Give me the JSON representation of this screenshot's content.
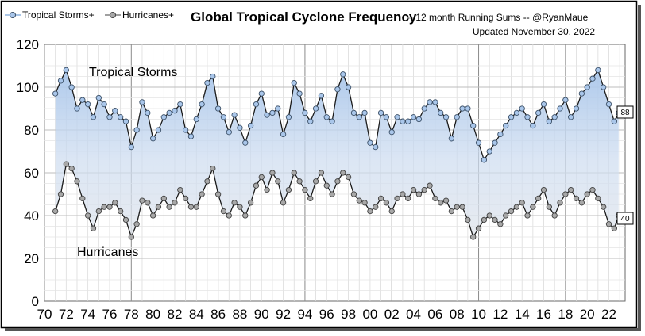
{
  "chart_data": {
    "type": "line",
    "title": "Global Tropical Cyclone Frequency",
    "title_suffix": "-- 12 month Running Sums -- @RyanMaue",
    "updated": "Updated November 30, 2022",
    "x_tick_labels": [
      "70",
      "72",
      "74",
      "76",
      "78",
      "80",
      "82",
      "84",
      "86",
      "88",
      "90",
      "92",
      "94",
      "96",
      "98",
      "00",
      "02",
      "04",
      "06",
      "08",
      "10",
      "12",
      "14",
      "16",
      "18",
      "20",
      "22"
    ],
    "y_ticks": [
      0,
      20,
      40,
      60,
      80,
      100,
      120
    ],
    "xlim": [
      1970,
      2023.5
    ],
    "ylim": [
      0,
      120
    ],
    "grid": true,
    "legend_position": "top-left",
    "series": [
      {
        "name": "Tropical Storms+",
        "annotation": "Tropical Storms",
        "end_label": "88",
        "color": "#8fb4de",
        "x": [
          1971.0,
          1971.5,
          1972.0,
          1972.5,
          1973.0,
          1973.5,
          1974.0,
          1974.5,
          1975.0,
          1975.5,
          1976.0,
          1976.5,
          1977.0,
          1977.5,
          1978.0,
          1978.5,
          1979.0,
          1979.5,
          1980.0,
          1980.5,
          1981.0,
          1981.5,
          1982.0,
          1982.5,
          1983.0,
          1983.5,
          1984.0,
          1984.5,
          1985.0,
          1985.5,
          1986.0,
          1986.5,
          1987.0,
          1987.5,
          1988.0,
          1988.5,
          1989.0,
          1989.5,
          1990.0,
          1990.5,
          1991.0,
          1991.5,
          1992.0,
          1992.5,
          1993.0,
          1993.5,
          1994.0,
          1994.5,
          1995.0,
          1995.5,
          1996.0,
          1996.5,
          1997.0,
          1997.5,
          1998.0,
          1998.5,
          1999.0,
          1999.5,
          2000.0,
          2000.5,
          2001.0,
          2001.5,
          2002.0,
          2002.5,
          2003.0,
          2003.5,
          2004.0,
          2004.5,
          2005.0,
          2005.5,
          2006.0,
          2006.5,
          2007.0,
          2007.5,
          2008.0,
          2008.5,
          2009.0,
          2009.5,
          2010.0,
          2010.5,
          2011.0,
          2011.5,
          2012.0,
          2012.5,
          2013.0,
          2013.5,
          2014.0,
          2014.5,
          2015.0,
          2015.5,
          2016.0,
          2016.5,
          2017.0,
          2017.5,
          2018.0,
          2018.5,
          2019.0,
          2019.5,
          2020.0,
          2020.5,
          2021.0,
          2021.5,
          2022.0,
          2022.5,
          2022.9
        ],
        "values": [
          97,
          103,
          108,
          100,
          90,
          94,
          92,
          86,
          95,
          92,
          86,
          89,
          86,
          84,
          72,
          80,
          93,
          88,
          76,
          80,
          86,
          88,
          89,
          92,
          80,
          77,
          85,
          92,
          102,
          105,
          90,
          86,
          79,
          87,
          81,
          74,
          82,
          92,
          97,
          87,
          88,
          90,
          78,
          86,
          102,
          97,
          88,
          84,
          90,
          96,
          86,
          84,
          99,
          106,
          100,
          88,
          86,
          88,
          74,
          72,
          88,
          86,
          79,
          86,
          84,
          84,
          86,
          85,
          90,
          93,
          93,
          88,
          86,
          76,
          86,
          90,
          90,
          82,
          74,
          66,
          70,
          74,
          78,
          82,
          86,
          88,
          90,
          86,
          82,
          88,
          92,
          84,
          86,
          90,
          94,
          86,
          90,
          97,
          100,
          104,
          108,
          100,
          92,
          84,
          88
        ]
      },
      {
        "name": "Hurricanes+",
        "annotation": "Hurricanes",
        "end_label": "40",
        "color": "#9a9a9a",
        "x": [
          1971.0,
          1971.5,
          1972.0,
          1972.5,
          1973.0,
          1973.5,
          1974.0,
          1974.5,
          1975.0,
          1975.5,
          1976.0,
          1976.5,
          1977.0,
          1977.5,
          1978.0,
          1978.5,
          1979.0,
          1979.5,
          1980.0,
          1980.5,
          1981.0,
          1981.5,
          1982.0,
          1982.5,
          1983.0,
          1983.5,
          1984.0,
          1984.5,
          1985.0,
          1985.5,
          1986.0,
          1986.5,
          1987.0,
          1987.5,
          1988.0,
          1988.5,
          1989.0,
          1989.5,
          1990.0,
          1990.5,
          1991.0,
          1991.5,
          1992.0,
          1992.5,
          1993.0,
          1993.5,
          1994.0,
          1994.5,
          1995.0,
          1995.5,
          1996.0,
          1996.5,
          1997.0,
          1997.5,
          1998.0,
          1998.5,
          1999.0,
          1999.5,
          2000.0,
          2000.5,
          2001.0,
          2001.5,
          2002.0,
          2002.5,
          2003.0,
          2003.5,
          2004.0,
          2004.5,
          2005.0,
          2005.5,
          2006.0,
          2006.5,
          2007.0,
          2007.5,
          2008.0,
          2008.5,
          2009.0,
          2009.5,
          2010.0,
          2010.5,
          2011.0,
          2011.5,
          2012.0,
          2012.5,
          2013.0,
          2013.5,
          2014.0,
          2014.5,
          2015.0,
          2015.5,
          2016.0,
          2016.5,
          2017.0,
          2017.5,
          2018.0,
          2018.5,
          2019.0,
          2019.5,
          2020.0,
          2020.5,
          2021.0,
          2021.5,
          2022.0,
          2022.5,
          2022.9
        ],
        "values": [
          42,
          50,
          64,
          62,
          56,
          48,
          40,
          34,
          42,
          44,
          44,
          46,
          42,
          38,
          30,
          36,
          47,
          46,
          40,
          44,
          48,
          44,
          46,
          52,
          48,
          44,
          44,
          50,
          56,
          62,
          50,
          42,
          40,
          46,
          44,
          40,
          46,
          54,
          58,
          52,
          60,
          56,
          46,
          52,
          60,
          56,
          52,
          48,
          56,
          60,
          54,
          50,
          56,
          60,
          58,
          50,
          47,
          46,
          42,
          44,
          48,
          46,
          42,
          48,
          50,
          48,
          52,
          50,
          52,
          54,
          48,
          46,
          47,
          42,
          44,
          44,
          38,
          30,
          34,
          38,
          40,
          38,
          36,
          40,
          42,
          44,
          46,
          40,
          44,
          48,
          52,
          44,
          40,
          46,
          50,
          52,
          48,
          46,
          50,
          52,
          48,
          44,
          36,
          34,
          40
        ]
      }
    ]
  }
}
